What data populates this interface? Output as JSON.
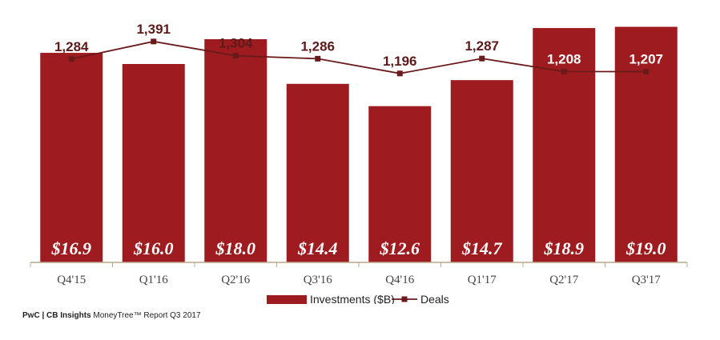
{
  "footer": {
    "source_bold": "PwC | CB Insights",
    "source_rest": " MoneyTree™ Report Q3 2017"
  },
  "colors": {
    "bar": "#9e1c20",
    "line": "#6b1a1c",
    "label_on_bar": "#ffffff",
    "label_above_bar": "#5c1a1a",
    "axis": "#b8a88a"
  },
  "chart_data": {
    "type": "bar",
    "categories": [
      "Q4'15",
      "Q1'16",
      "Q2'16",
      "Q3'16",
      "Q4'16",
      "Q1'17",
      "Q2'17",
      "Q3'17"
    ],
    "series": [
      {
        "name": "Investments ($B)",
        "type": "bar",
        "values": [
          16.9,
          16.0,
          18.0,
          14.4,
          12.6,
          14.7,
          18.9,
          19.0
        ],
        "labels": [
          "$16.9",
          "$16.0",
          "$18.0",
          "$14.4",
          "$12.6",
          "$14.7",
          "$18.9",
          "$19.0"
        ]
      },
      {
        "name": "Deals",
        "type": "line",
        "values": [
          1284,
          1391,
          1304,
          1286,
          1196,
          1287,
          1208,
          1207
        ],
        "labels": [
          "1,284",
          "1,391",
          "1,304",
          "1,286",
          "1,196",
          "1,287",
          "1,208",
          "1,207"
        ]
      }
    ],
    "legend": {
      "position": "bottom",
      "items": [
        "Investments ($B)",
        "Deals"
      ]
    },
    "grid": false
  }
}
